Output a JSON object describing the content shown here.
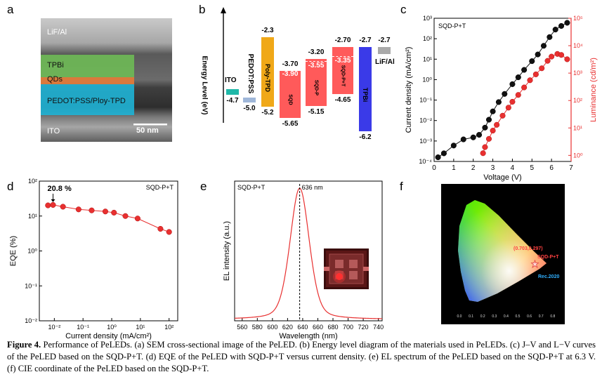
{
  "panels": {
    "a": {
      "letter": "a",
      "layers": [
        "LiF/Al",
        "TPBi",
        "QDs",
        "PEDOT:PSS/Ploy-TPD",
        "ITO"
      ],
      "scale_bar": "50 nm"
    },
    "b": {
      "letter": "b",
      "y_axis_label": "Energy Level (eV)",
      "materials": [
        {
          "name": "ITO",
          "upper": "",
          "lower": "-4.7",
          "color": "#1fb8a8"
        },
        {
          "name": "PEDOT:PSS",
          "upper": "",
          "lower": "-5.0",
          "color": "#9fb7d9"
        },
        {
          "name": "Poly-TPD",
          "upper": "-2.3",
          "lower": "-5.2",
          "color": "#f0a818"
        },
        {
          "name": "SQD",
          "upper": "-3.70",
          "mid": "-3.90",
          "lower": "-5.65",
          "color": "#ff5a5a"
        },
        {
          "name": "SQD-P",
          "upper": "-3.20",
          "mid": "-3.55",
          "lower": "-5.15",
          "color": "#ff5a5a"
        },
        {
          "name": "SQD-P+T",
          "upper": "-2.70",
          "mid": "-3.35",
          "lower": "-4.65",
          "color": "#ff5a5a"
        },
        {
          "name": "TPBi",
          "upper": "-2.7",
          "lower": "-6.2",
          "color": "#3a3ae8"
        },
        {
          "name": "LiF/Al",
          "upper": "-2.7",
          "lower": "",
          "color": "#a9a9a9"
        }
      ]
    },
    "c": {
      "letter": "c",
      "legend": "SQD-P+T"
    },
    "d": {
      "letter": "d",
      "legend": "SQD-P+T",
      "annotation": "20.8 %"
    },
    "e": {
      "letter": "e",
      "legend": "SQD-P+T",
      "peak_label": "636 nm"
    },
    "f": {
      "letter": "f",
      "coord_label": "(0.703,0.297)",
      "point_label": "SQD-P+T",
      "rec_label": "Rec.2020",
      "ticks": [
        "0.0",
        "0.1",
        "0.2",
        "0.3",
        "0.4",
        "0.5",
        "0.6",
        "0.7",
        "0.8"
      ]
    }
  },
  "chart_data": [
    {
      "type": "line",
      "panel": "c",
      "xlabel": "Voltage (V)",
      "ylabel": "Current density (mA/cm²)",
      "y2label": "Luminance (cd/m²)",
      "xlim": [
        0,
        7
      ],
      "xticks": [
        "0",
        "1",
        "2",
        "3",
        "4",
        "5",
        "6",
        "7"
      ],
      "ylim": [
        0.0001,
        1000
      ],
      "y_scale": "log",
      "yticks": [
        "10⁻⁴",
        "10⁻³",
        "10⁻²",
        "10⁻¹",
        "10⁰",
        "10¹",
        "10²",
        "10³"
      ],
      "y2lim": [
        0.6,
        100000
      ],
      "y2_scale": "log",
      "y2ticks": [
        "10⁰",
        "10¹",
        "10²",
        "10³",
        "10⁴",
        "10⁵"
      ],
      "series": [
        {
          "axis": "left",
          "color": "#111111",
          "points": [
            [
              0.2,
              0.00016
            ],
            [
              0.5,
              0.00025
            ],
            [
              1.0,
              0.0006
            ],
            [
              1.5,
              0.0012
            ],
            [
              2.0,
              0.0015
            ],
            [
              2.3,
              0.002
            ],
            [
              2.6,
              0.0045
            ],
            [
              2.8,
              0.011
            ],
            [
              3.0,
              0.028
            ],
            [
              3.3,
              0.08
            ],
            [
              3.6,
              0.2
            ],
            [
              4.0,
              0.6
            ],
            [
              4.3,
              1.3
            ],
            [
              4.6,
              3.0
            ],
            [
              5.0,
              8.0
            ],
            [
              5.3,
              17
            ],
            [
              5.6,
              45
            ],
            [
              5.9,
              120
            ],
            [
              6.2,
              280
            ],
            [
              6.5,
              420
            ],
            [
              6.8,
              600
            ]
          ]
        },
        {
          "axis": "right",
          "color": "#e83030",
          "points": [
            [
              2.5,
              1.2
            ],
            [
              2.6,
              2.0
            ],
            [
              2.8,
              4.0
            ],
            [
              3.0,
              8.0
            ],
            [
              3.2,
              13
            ],
            [
              3.5,
              28
            ],
            [
              3.8,
              55
            ],
            [
              4.0,
              90
            ],
            [
              4.3,
              160
            ],
            [
              4.6,
              300
            ],
            [
              4.9,
              550
            ],
            [
              5.2,
              900
            ],
            [
              5.5,
              1500
            ],
            [
              5.8,
              2800
            ],
            [
              6.0,
              4000
            ],
            [
              6.3,
              5000
            ],
            [
              6.5,
              4600
            ],
            [
              6.8,
              3200
            ]
          ]
        }
      ]
    },
    {
      "type": "line",
      "panel": "d",
      "xlabel": "Current density (mA/cm²)",
      "ylabel": "EQE (%)",
      "x_scale": "log",
      "xlim": [
        0.003,
        200
      ],
      "xticks": [
        "10⁻²",
        "10⁻¹",
        "10⁰",
        "10¹",
        "10²"
      ],
      "y_scale": "log",
      "ylim": [
        0.01,
        100
      ],
      "yticks": [
        "10⁻²",
        "10⁻¹",
        "10⁰",
        "10¹",
        "10²"
      ],
      "series": [
        {
          "color": "#e83030",
          "points": [
            [
              0.006,
              20.2
            ],
            [
              0.009,
              20.8
            ],
            [
              0.02,
              18.5
            ],
            [
              0.07,
              15.5
            ],
            [
              0.2,
              14.5
            ],
            [
              0.6,
              13.5
            ],
            [
              1.2,
              12.5
            ],
            [
              3,
              10
            ],
            [
              8,
              8.5
            ],
            [
              50,
              4.3
            ],
            [
              100,
              3.5
            ]
          ]
        }
      ]
    },
    {
      "type": "line",
      "panel": "e",
      "xlabel": "Wavelength (nm)",
      "ylabel": "EL intensity (a.u.)",
      "xlim": [
        550,
        745
      ],
      "xticks": [
        "560",
        "580",
        "600",
        "620",
        "640",
        "660",
        "680",
        "700",
        "720",
        "740"
      ],
      "series": [
        {
          "color": "#e83030",
          "peak": 636,
          "fwhm": 30
        }
      ]
    }
  ]
}
